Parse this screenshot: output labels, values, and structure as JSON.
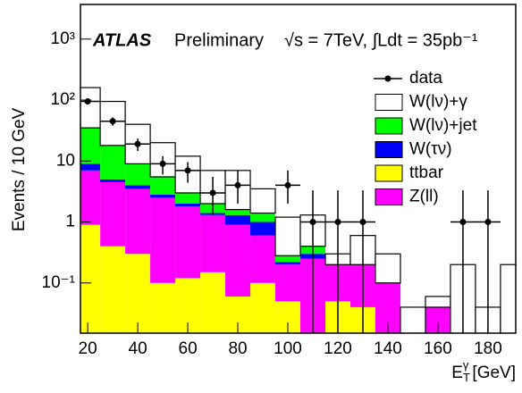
{
  "chart_data": {
    "type": "stacked_histogram",
    "annotation_experiment": "ATLAS",
    "annotation_status": "Preliminary",
    "annotation_energy": "√s = 7TeV, ∫Ldt = 35pb⁻¹",
    "y_label": "Events / 10 GeV",
    "x_label": "E",
    "x_label_sub": "T",
    "x_label_sup": "γ",
    "x_label_unit": "[GeV]",
    "bins": [
      15,
      25,
      35,
      45,
      55,
      65,
      75,
      85,
      95,
      105,
      115,
      125,
      135,
      145,
      155,
      165,
      175,
      185,
      195
    ],
    "xlim": [
      17.1,
      191.1
    ],
    "xticks": [
      20,
      40,
      60,
      80,
      100,
      120,
      140,
      160,
      180
    ],
    "ylim": [
      0.015,
      3700
    ],
    "log_y": true,
    "yticks": [
      {
        "value": 0.1,
        "label": "10⁻¹"
      },
      1,
      10,
      {
        "value": 100,
        "label": "10²"
      },
      {
        "value": 1000,
        "label": "10³"
      }
    ],
    "series": [
      {
        "name": "ttbar",
        "color": "#ffff00",
        "values": [
          0.9,
          0.4,
          0.3,
          0.1,
          0.12,
          0.15,
          0.06,
          0.1,
          0.05,
          0,
          0.05,
          0.04,
          0,
          0,
          0,
          0,
          0,
          0
        ]
      },
      {
        "name": "Z(ll)",
        "color": "#ff00ff",
        "values": [
          6.1,
          4.1,
          3.2,
          2.4,
          1.68,
          1.15,
          0.84,
          0.5,
          0.15,
          0.25,
          0.15,
          0.16,
          0.1,
          0,
          0.04,
          0,
          0,
          0
        ]
      },
      {
        "name": "W(τν)",
        "color": "#0000ff",
        "values": [
          2,
          0.5,
          0.5,
          0.3,
          0.2,
          0.1,
          0.4,
          0.4,
          0.02,
          0.05,
          0,
          0,
          0,
          0,
          0,
          0,
          0,
          0
        ]
      },
      {
        "name": "W(lν)+jet",
        "color": "#00ff00",
        "values": [
          26,
          13,
          5,
          2.7,
          1,
          0.6,
          0.3,
          0.4,
          0.06,
          0.1,
          0,
          0,
          0,
          0,
          0,
          0,
          0,
          0
        ]
      },
      {
        "name": "W(lν)+γ",
        "color": "#ffffff",
        "values": [
          125,
          77,
          31,
          14.5,
          9,
          5,
          5.4,
          2.1,
          0.92,
          0.9,
          0.1,
          0.4,
          0.2,
          0.04,
          0.02,
          0.2,
          0.04,
          0.2
        ]
      }
    ],
    "data_points": {
      "name": "data",
      "color": "#000000",
      "x": [
        20,
        30,
        40,
        50,
        60,
        70,
        80,
        100,
        110,
        120,
        130,
        170,
        180
      ],
      "values": [
        95,
        45,
        19,
        9,
        7,
        3,
        4,
        4,
        1,
        1,
        1,
        1,
        1
      ],
      "yerr_low": [
        10,
        7,
        4.4,
        3,
        2.6,
        1.7,
        2,
        2,
        1,
        1,
        1,
        1,
        1
      ],
      "yerr_high": [
        10,
        7,
        4.4,
        3,
        2.6,
        2.5,
        3,
        3,
        2.3,
        2.3,
        2.3,
        2.3,
        2.3
      ]
    },
    "legend_order": [
      "data",
      4,
      3,
      2,
      0,
      1
    ],
    "legend": "upper right"
  }
}
